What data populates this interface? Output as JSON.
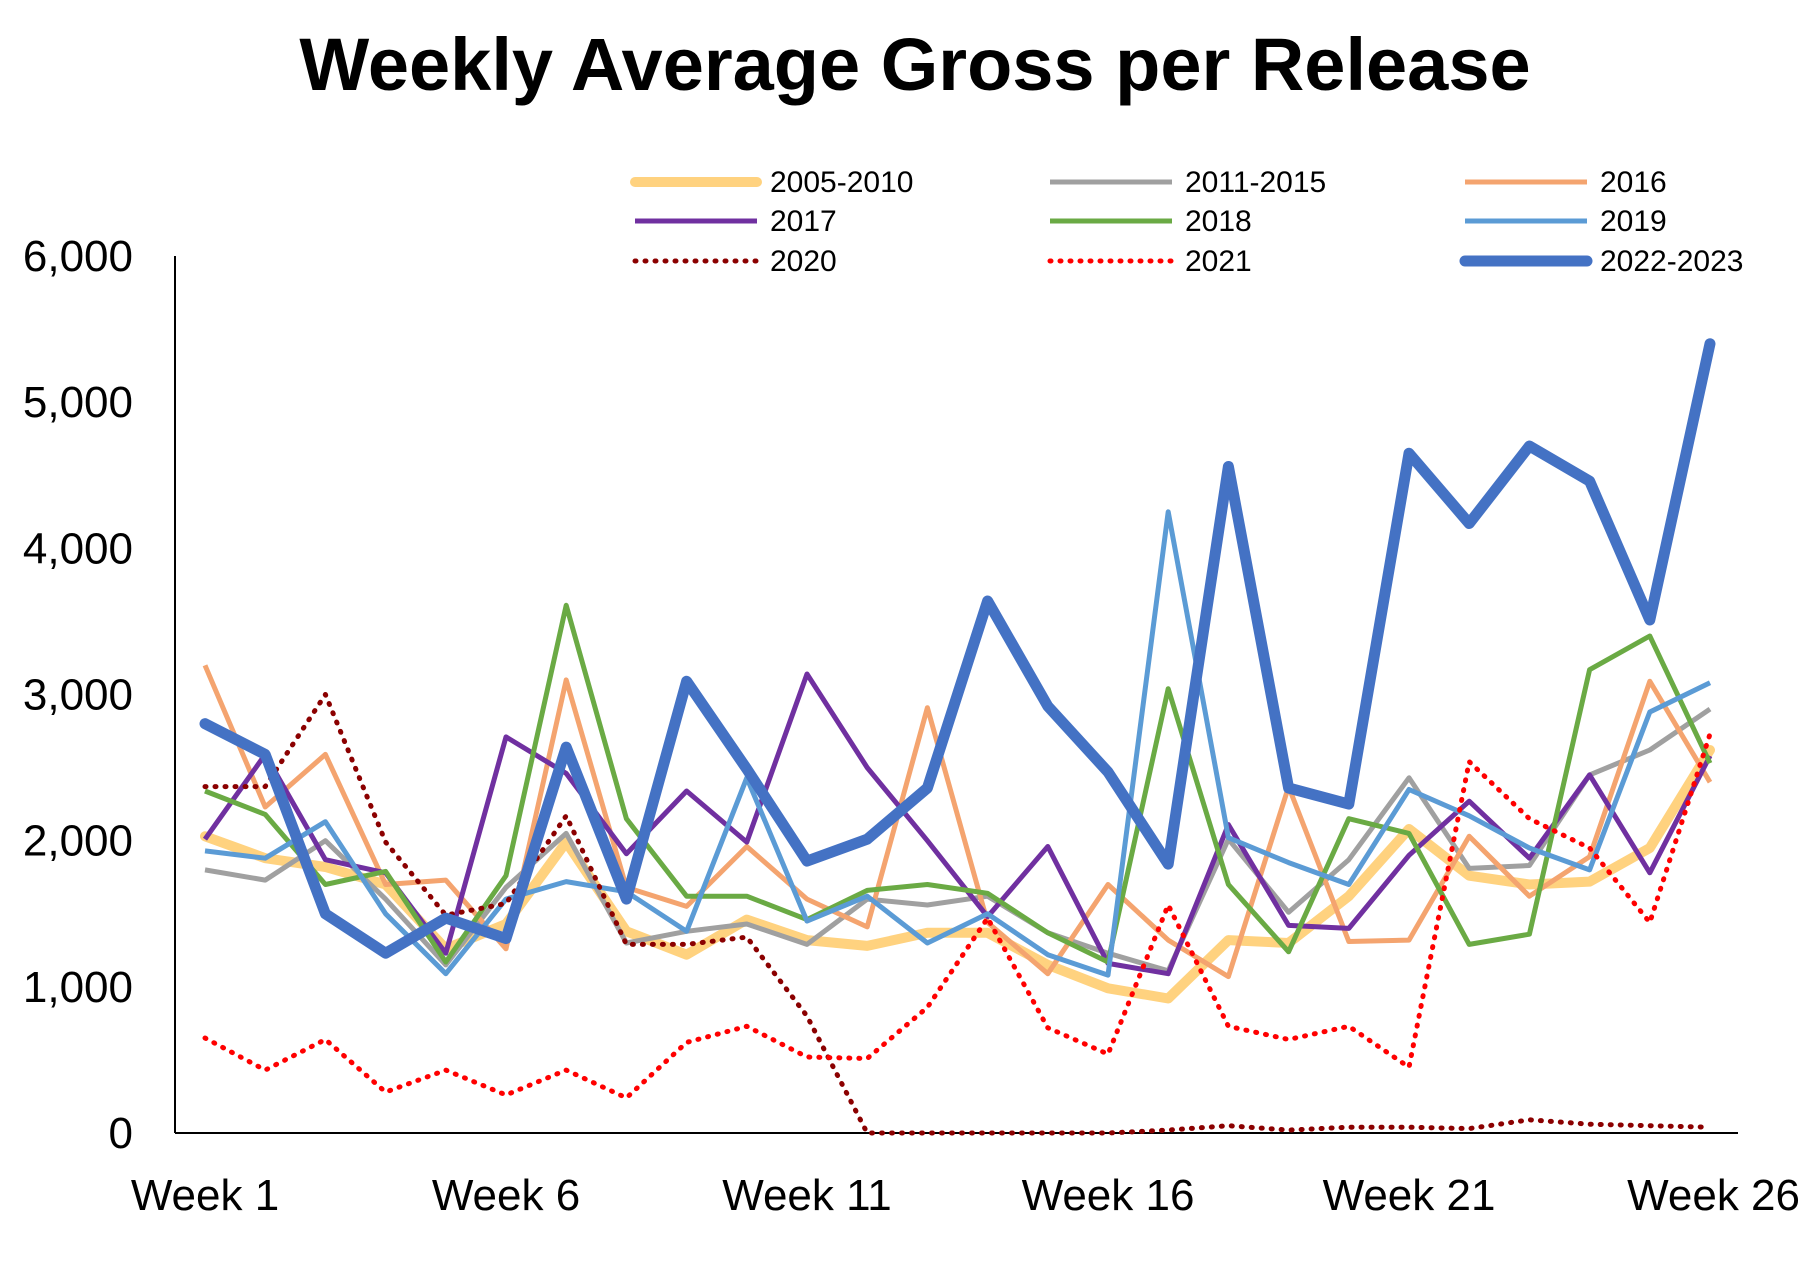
{
  "chart_data": {
    "type": "line",
    "title": "Weekly Average Gross per Release",
    "xlabel": "",
    "ylabel": "",
    "ylim": [
      0,
      6000
    ],
    "y_ticks": [
      0,
      1000,
      2000,
      3000,
      4000,
      5000,
      6000
    ],
    "y_tick_labels": [
      "0",
      "1,000",
      "2,000",
      "3,000",
      "4,000",
      "5,000",
      "6,000"
    ],
    "categories": [
      "Week 1",
      "Week 2",
      "Week 3",
      "Week 4",
      "Week 5",
      "Week 6",
      "Week 7",
      "Week 8",
      "Week 9",
      "Week 10",
      "Week 11",
      "Week 12",
      "Week 13",
      "Week 14",
      "Week 15",
      "Week 16",
      "Week 17",
      "Week 18",
      "Week 19",
      "Week 20",
      "Week 21",
      "Week 22",
      "Week 23",
      "Week 24",
      "Week 25",
      "Week 26"
    ],
    "x_tick_labels": [
      "Week 1",
      "Week 6",
      "Week 11",
      "Week 16",
      "Week 21",
      "Week 26"
    ],
    "x_tick_indices": [
      0,
      5,
      10,
      15,
      20,
      25
    ],
    "grid": false,
    "legend": "top",
    "series": [
      {
        "name": "2005-2010",
        "color": "#FFD27F",
        "style": "solid",
        "weight": "thick",
        "values": [
          2030,
          1880,
          1820,
          1700,
          1260,
          1430,
          1990,
          1380,
          1220,
          1460,
          1320,
          1280,
          1370,
          1370,
          1150,
          990,
          920,
          1320,
          1300,
          1620,
          2080,
          1760,
          1700,
          1720,
          1950,
          2620
        ]
      },
      {
        "name": "2011-2015",
        "color": "#A0A0A0",
        "style": "solid",
        "weight": "normal",
        "values": [
          1800,
          1730,
          2000,
          1600,
          1150,
          1680,
          2050,
          1300,
          1380,
          1430,
          1290,
          1600,
          1560,
          1620,
          1370,
          1230,
          1110,
          2010,
          1510,
          1870,
          2430,
          1810,
          1830,
          2450,
          2620,
          2900
        ]
      },
      {
        "name": "2016",
        "color": "#F4A46F",
        "style": "solid",
        "weight": "normal",
        "values": [
          3200,
          2230,
          2590,
          1700,
          1730,
          1260,
          3100,
          1680,
          1550,
          1960,
          1600,
          1410,
          2910,
          1440,
          1090,
          1700,
          1320,
          1070,
          2370,
          1310,
          1320,
          2030,
          1620,
          1890,
          3090,
          2400
        ]
      },
      {
        "name": "2017",
        "color": "#7030A0",
        "style": "solid",
        "weight": "normal",
        "values": [
          2010,
          2590,
          1870,
          1780,
          1230,
          2710,
          2460,
          1910,
          2340,
          1990,
          3140,
          2500,
          2000,
          1480,
          1960,
          1160,
          1090,
          2110,
          1420,
          1400,
          1900,
          2270,
          1880,
          2450,
          1780,
          2580
        ]
      },
      {
        "name": "2018",
        "color": "#6AAA44",
        "style": "solid",
        "weight": "normal",
        "values": [
          2340,
          2180,
          1700,
          1790,
          1170,
          1760,
          3610,
          2150,
          1620,
          1620,
          1460,
          1660,
          1700,
          1640,
          1370,
          1170,
          3040,
          1700,
          1240,
          2150,
          2050,
          1290,
          1360,
          3170,
          3400,
          2530
        ]
      },
      {
        "name": "2019",
        "color": "#5B9BD5",
        "style": "solid",
        "weight": "normal",
        "values": [
          1930,
          1880,
          2130,
          1500,
          1090,
          1600,
          1720,
          1650,
          1380,
          2430,
          1450,
          1620,
          1300,
          1500,
          1220,
          1080,
          4250,
          2020,
          1850,
          1700,
          2350,
          2170,
          1950,
          1800,
          2880,
          3080
        ]
      },
      {
        "name": "2020",
        "color": "#8B0000",
        "style": "dotted",
        "weight": "normal",
        "values": [
          2370,
          2370,
          3000,
          1990,
          1490,
          1570,
          2170,
          1290,
          1290,
          1340,
          800,
          0,
          0,
          0,
          0,
          0,
          20,
          50,
          20,
          40,
          40,
          30,
          90,
          60,
          50,
          40
        ]
      },
      {
        "name": "2021",
        "color": "#FF0000",
        "style": "dotted",
        "weight": "normal",
        "values": [
          650,
          430,
          640,
          280,
          430,
          260,
          430,
          240,
          620,
          730,
          520,
          510,
          860,
          1470,
          720,
          540,
          1560,
          730,
          640,
          730,
          450,
          2540,
          2150,
          1950,
          1440,
          2730
        ]
      },
      {
        "name": "2022-2023",
        "color": "#4472C4",
        "style": "solid",
        "weight": "thickest",
        "values": [
          2800,
          2590,
          1500,
          1230,
          1470,
          1330,
          2640,
          1600,
          3090,
          2490,
          1860,
          2010,
          2360,
          3640,
          2920,
          2470,
          1840,
          4560,
          2360,
          2250,
          4650,
          4170,
          4700,
          4460,
          3510,
          5400
        ]
      }
    ]
  }
}
